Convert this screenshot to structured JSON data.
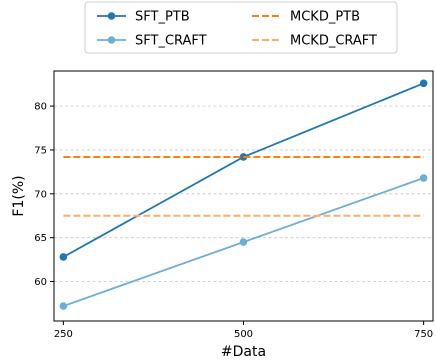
{
  "chart_data": {
    "type": "line",
    "x": [
      250,
      500,
      750
    ],
    "xlabel": "#Data",
    "ylabel": "F1(%)",
    "ylim": [
      55.5,
      84
    ],
    "yticks": [
      60,
      65,
      70,
      75,
      80
    ],
    "xticks": [
      250,
      500,
      750
    ],
    "grid": "y-dashed",
    "legend_placement": "top-center, outside, 2 columns",
    "series": [
      {
        "name": "SFT_PTB",
        "values": [
          62.8,
          74.2,
          82.6
        ],
        "color": "#1f77b4",
        "style": "solid-marker"
      },
      {
        "name": "MCKD_PTB",
        "values": [
          74.2,
          74.2,
          74.2
        ],
        "color": "#ff7f0e",
        "style": "dashed"
      },
      {
        "name": "SFT_CRAFT",
        "values": [
          57.2,
          64.5,
          71.8
        ],
        "color": "#6baed6",
        "style": "solid-marker"
      },
      {
        "name": "MCKD_CRAFT",
        "values": [
          67.5,
          67.5,
          67.5
        ],
        "color": "#fdae6b",
        "style": "dashed"
      }
    ]
  }
}
